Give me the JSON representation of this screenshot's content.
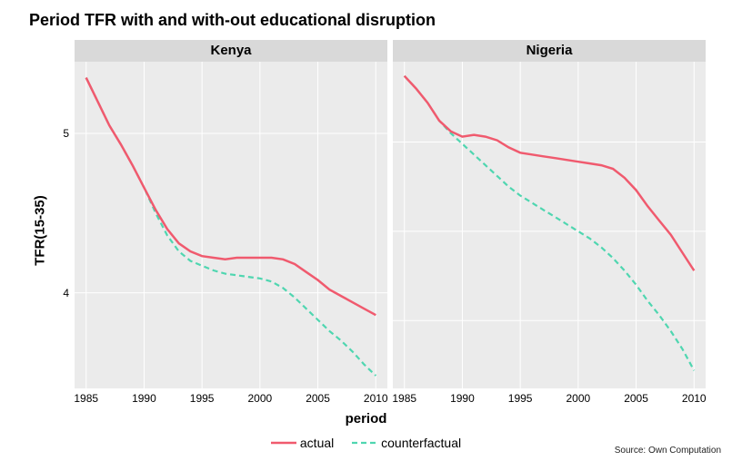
{
  "title": "Period TFR with and with-out educational disruption",
  "ylabel": "TFR(15-35)",
  "xlabel": "period",
  "source": "Source: Own Computation",
  "colors": {
    "actual": "#f05a6e",
    "counterfactual": "#4fd6b0",
    "panel_bg": "#ebebeb",
    "strip_bg": "#d9d9d9",
    "grid_major": "#ffffff"
  },
  "legend": {
    "actual": "actual",
    "counterfactual": "counterfactual"
  },
  "x": {
    "min": 1984,
    "max": 2011,
    "ticks": [
      1985,
      1990,
      1995,
      2000,
      2005,
      2010
    ]
  },
  "panels": [
    {
      "name": "Kenya",
      "y": {
        "min": 3.4,
        "max": 5.45,
        "ticks": [
          4,
          5
        ]
      },
      "actual": [
        [
          1985,
          5.35
        ],
        [
          1986,
          5.2
        ],
        [
          1987,
          5.05
        ],
        [
          1988,
          4.93
        ],
        [
          1989,
          4.8
        ],
        [
          1990,
          4.66
        ],
        [
          1991,
          4.52
        ],
        [
          1992,
          4.4
        ],
        [
          1993,
          4.31
        ],
        [
          1994,
          4.26
        ],
        [
          1995,
          4.23
        ],
        [
          1996,
          4.22
        ],
        [
          1997,
          4.21
        ],
        [
          1998,
          4.22
        ],
        [
          1999,
          4.22
        ],
        [
          2000,
          4.22
        ],
        [
          2001,
          4.22
        ],
        [
          2002,
          4.21
        ],
        [
          2003,
          4.18
        ],
        [
          2004,
          4.13
        ],
        [
          2005,
          4.08
        ],
        [
          2006,
          4.02
        ],
        [
          2007,
          3.98
        ],
        [
          2008,
          3.94
        ],
        [
          2009,
          3.9
        ],
        [
          2010,
          3.86
        ]
      ],
      "counterfactual": [
        [
          1985,
          5.35
        ],
        [
          1986,
          5.2
        ],
        [
          1987,
          5.05
        ],
        [
          1988,
          4.93
        ],
        [
          1989,
          4.8
        ],
        [
          1990,
          4.66
        ],
        [
          1991,
          4.5
        ],
        [
          1992,
          4.36
        ],
        [
          1993,
          4.26
        ],
        [
          1994,
          4.2
        ],
        [
          1995,
          4.17
        ],
        [
          1996,
          4.14
        ],
        [
          1997,
          4.12
        ],
        [
          1998,
          4.11
        ],
        [
          1999,
          4.1
        ],
        [
          2000,
          4.09
        ],
        [
          2001,
          4.07
        ],
        [
          2002,
          4.03
        ],
        [
          2003,
          3.97
        ],
        [
          2004,
          3.9
        ],
        [
          2005,
          3.83
        ],
        [
          2006,
          3.76
        ],
        [
          2007,
          3.7
        ],
        [
          2008,
          3.63
        ],
        [
          2009,
          3.55
        ],
        [
          2010,
          3.48
        ]
      ]
    },
    {
      "name": "Nigeria",
      "y": {
        "min": 4.12,
        "max": 5.95,
        "ticks": [
          4.5,
          5.0,
          5.5
        ]
      },
      "actual": [
        [
          1985,
          5.87
        ],
        [
          1986,
          5.8
        ],
        [
          1987,
          5.72
        ],
        [
          1988,
          5.62
        ],
        [
          1989,
          5.56
        ],
        [
          1990,
          5.53
        ],
        [
          1991,
          5.54
        ],
        [
          1992,
          5.53
        ],
        [
          1993,
          5.51
        ],
        [
          1994,
          5.47
        ],
        [
          1995,
          5.44
        ],
        [
          1996,
          5.43
        ],
        [
          1997,
          5.42
        ],
        [
          1998,
          5.41
        ],
        [
          1999,
          5.4
        ],
        [
          2000,
          5.39
        ],
        [
          2001,
          5.38
        ],
        [
          2002,
          5.37
        ],
        [
          2003,
          5.35
        ],
        [
          2004,
          5.3
        ],
        [
          2005,
          5.23
        ],
        [
          2006,
          5.14
        ],
        [
          2007,
          5.06
        ],
        [
          2008,
          4.98
        ],
        [
          2009,
          4.88
        ],
        [
          2010,
          4.78
        ]
      ],
      "counterfactual": [
        [
          1985,
          5.87
        ],
        [
          1986,
          5.8
        ],
        [
          1987,
          5.72
        ],
        [
          1988,
          5.62
        ],
        [
          1989,
          5.55
        ],
        [
          1990,
          5.49
        ],
        [
          1991,
          5.43
        ],
        [
          1992,
          5.37
        ],
        [
          1993,
          5.31
        ],
        [
          1994,
          5.25
        ],
        [
          1995,
          5.2
        ],
        [
          1996,
          5.16
        ],
        [
          1997,
          5.12
        ],
        [
          1998,
          5.08
        ],
        [
          1999,
          5.04
        ],
        [
          2000,
          5.0
        ],
        [
          2001,
          4.96
        ],
        [
          2002,
          4.91
        ],
        [
          2003,
          4.85
        ],
        [
          2004,
          4.78
        ],
        [
          2005,
          4.7
        ],
        [
          2006,
          4.61
        ],
        [
          2007,
          4.53
        ],
        [
          2008,
          4.44
        ],
        [
          2009,
          4.34
        ],
        [
          2010,
          4.22
        ]
      ]
    }
  ]
}
